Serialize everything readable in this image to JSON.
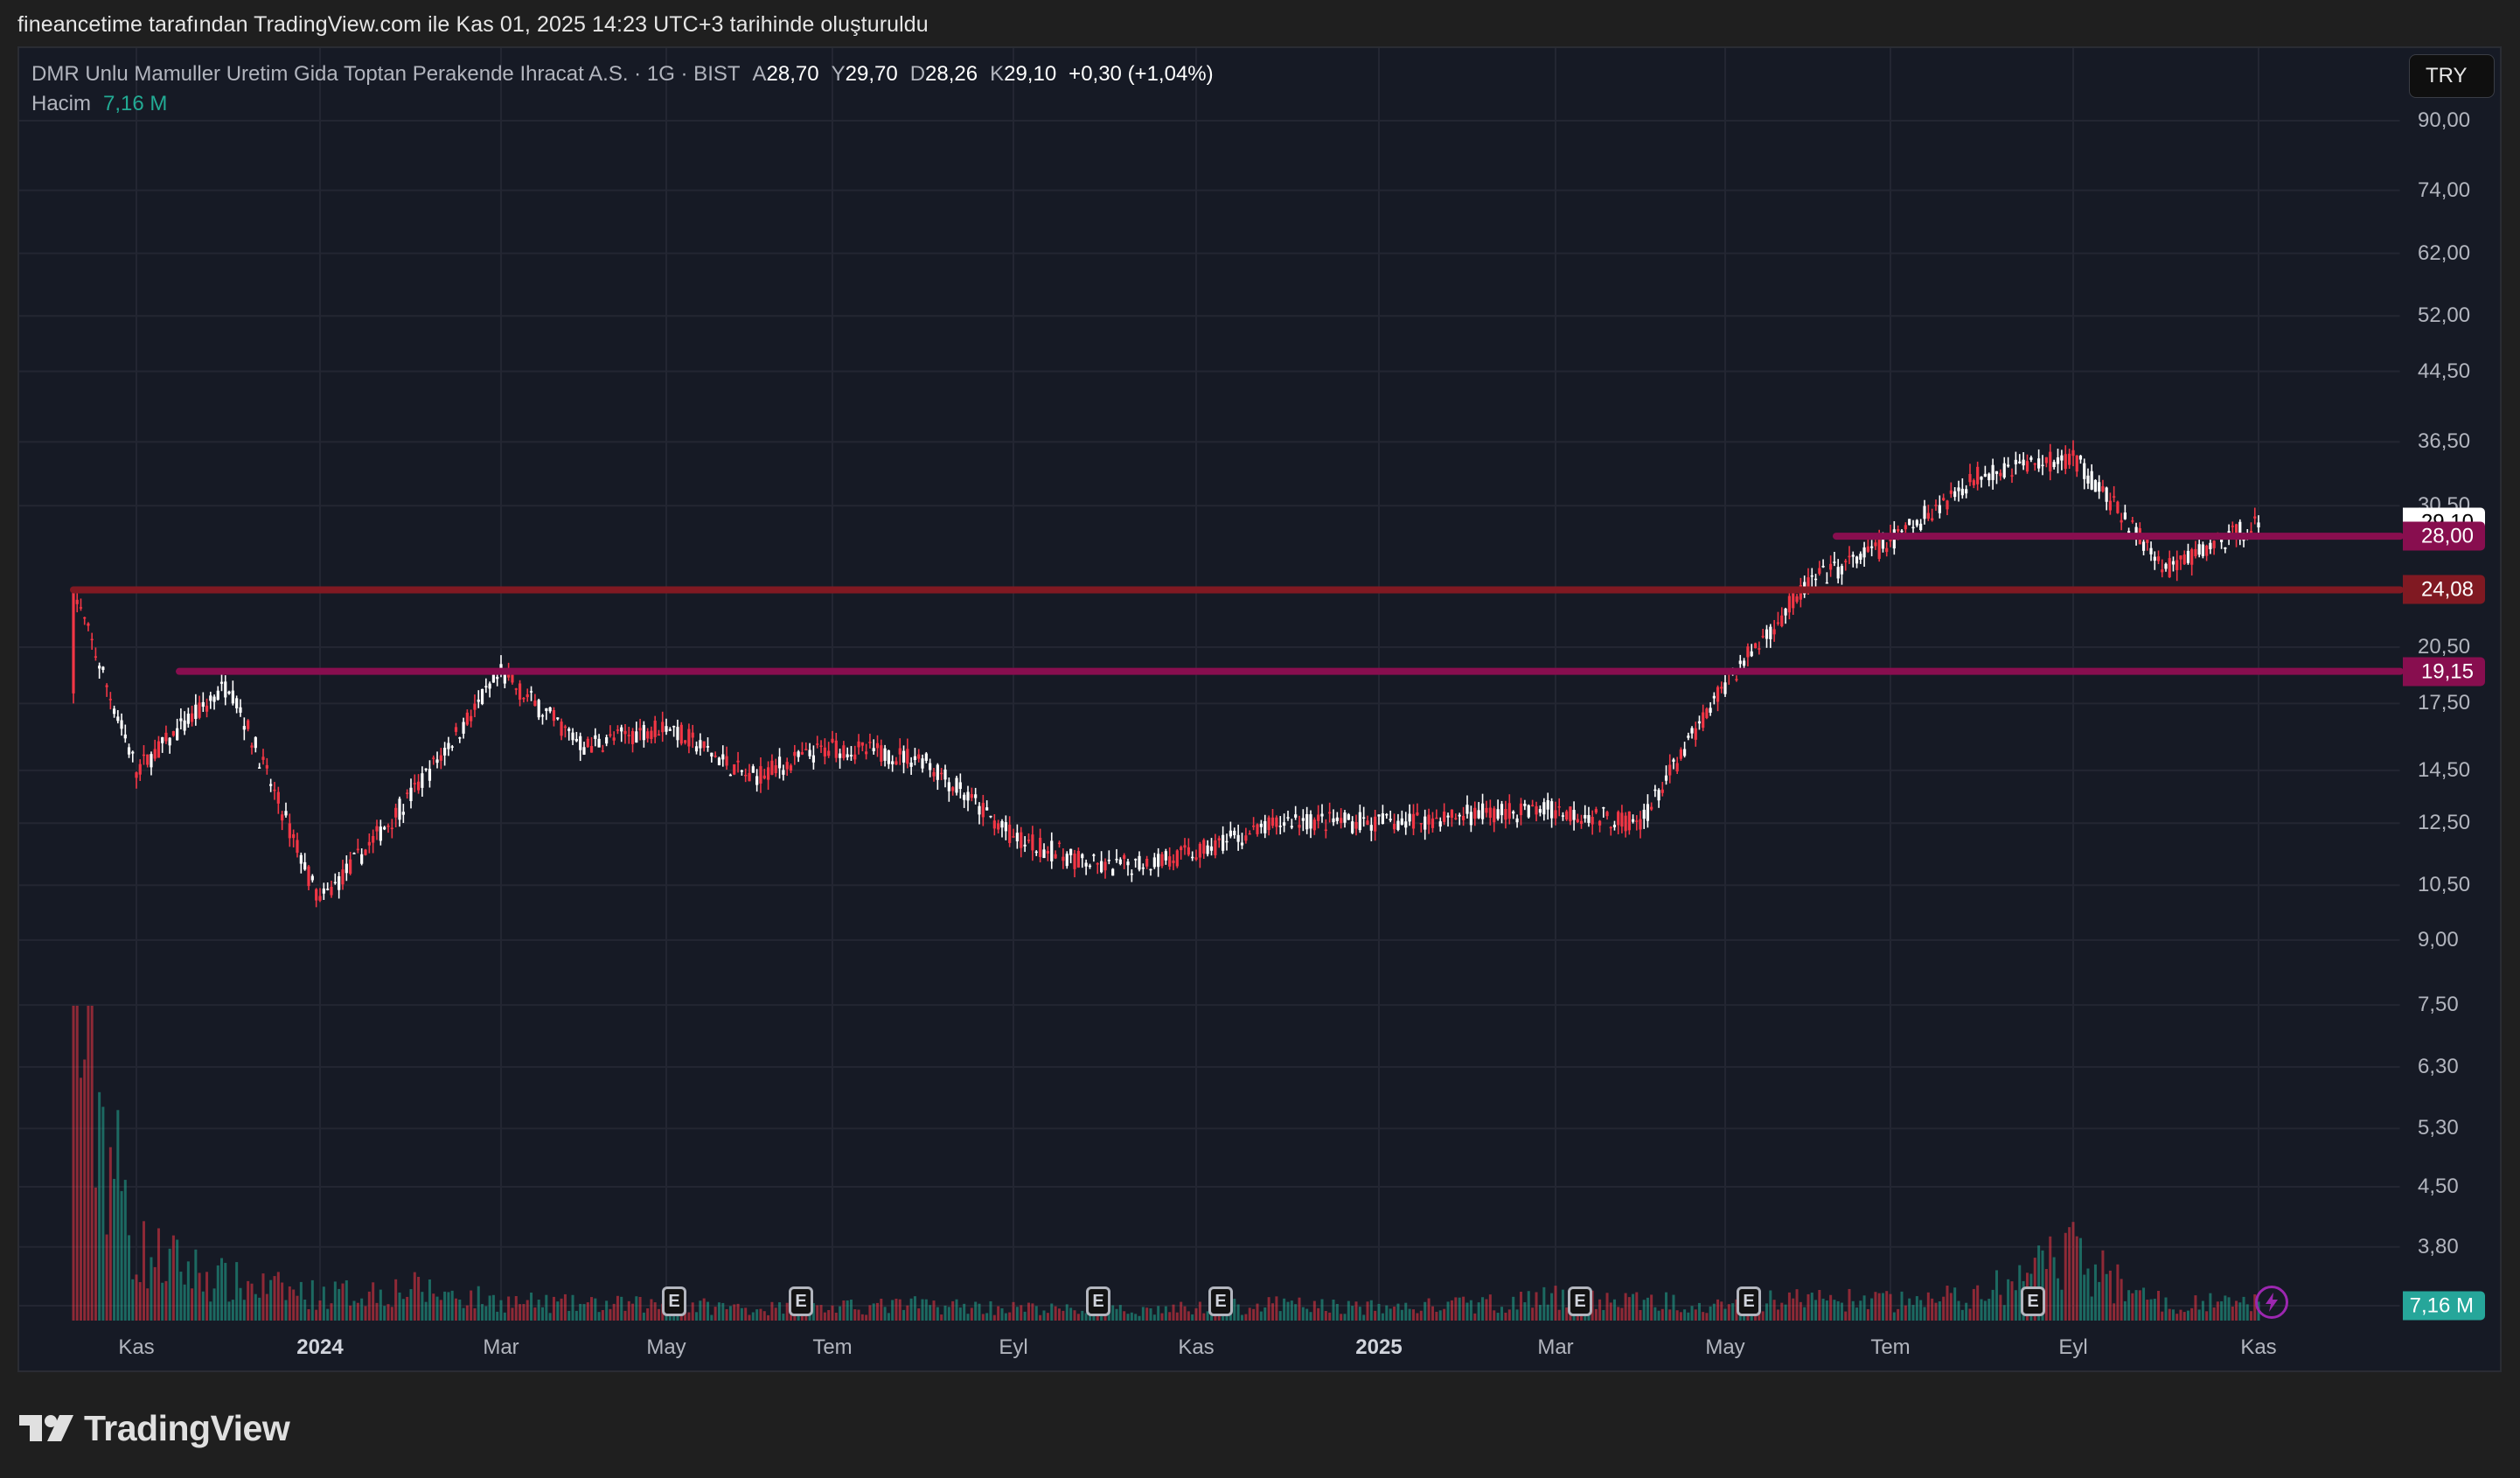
{
  "credit": "fineancetime tarafından TradingView.com ile Kas 01, 2025 14:23 UTC+3 tarihinde oluşturuldu",
  "legend": {
    "symbol": "DMR Unlu Mamuller Uretim Gida Toptan Perakende Ihracat A.S. · 1G · BIST",
    "open_label": "A",
    "open": "28,70",
    "high_label": "Y",
    "high": "29,70",
    "low_label": "D",
    "low": "28,26",
    "close_label": "K",
    "close": "29,10",
    "change": "+0,30 (+1,04%)",
    "volume_label": "Hacim",
    "volume": "7,16 M"
  },
  "currency_button": "TRY",
  "footer_logo": "TradingView",
  "colors": {
    "background": "#161a25",
    "up_candle": "#ffffff",
    "down_candle": "#f23645",
    "up_volume": "#22ab94",
    "down_volume": "#f23645",
    "level_24": "#801922",
    "level_magenta": "#880e4f",
    "last_price_badge": "#ffffff",
    "volume_badge": "#26a69a",
    "flash_icon": "#9c27b0"
  },
  "price_axis": {
    "labels": [
      "90,00",
      "74,00",
      "62,00",
      "52,00",
      "44,50",
      "36,50",
      "30,50",
      "20,50",
      "17,50",
      "14,50",
      "12,50",
      "10,50",
      "9,00",
      "7,50",
      "6,30",
      "5,30",
      "4,50",
      "3,80"
    ],
    "badges": [
      {
        "value": "29,10",
        "type": "last_price"
      },
      {
        "value": "28,00",
        "type": "horizontal_line"
      },
      {
        "value": "24,08",
        "type": "horizontal_line"
      },
      {
        "value": "19,15",
        "type": "horizontal_line"
      },
      {
        "value": "7,16 M",
        "type": "volume"
      }
    ]
  },
  "time_axis": {
    "labels": [
      {
        "text": "Kas",
        "bold": false
      },
      {
        "text": "2024",
        "bold": true
      },
      {
        "text": "Mar",
        "bold": false
      },
      {
        "text": "May",
        "bold": false
      },
      {
        "text": "Tem",
        "bold": false
      },
      {
        "text": "Eyl",
        "bold": false
      },
      {
        "text": "Kas",
        "bold": false
      },
      {
        "text": "2025",
        "bold": true
      },
      {
        "text": "Mar",
        "bold": false
      },
      {
        "text": "May",
        "bold": false
      },
      {
        "text": "Tem",
        "bold": false
      },
      {
        "text": "Eyl",
        "bold": false
      },
      {
        "text": "Kas",
        "bold": false
      }
    ],
    "earnings_marker": "E",
    "earnings_count": 7
  },
  "chart_data": {
    "type": "candlestick",
    "title": "DMR Unlu Mamuller Uretim Gida Toptan Perakende Ihracat A.S. · 1G · BIST",
    "xlabel": "",
    "ylabel": "TRY",
    "y_scale": "log",
    "ylim": [
      3.5,
      95
    ],
    "grid": true,
    "x": [
      "2023-10",
      "2023-11",
      "2023-12",
      "2024-01",
      "2024-02",
      "2024-03",
      "2024-04",
      "2024-05",
      "2024-06",
      "2024-07",
      "2024-08",
      "2024-09",
      "2024-10",
      "2024-11",
      "2024-12",
      "2025-01",
      "2025-02",
      "2025-03",
      "2025-04",
      "2025-05",
      "2025-06",
      "2025-07",
      "2025-08",
      "2025-09",
      "2025-10",
      "2025-10-31"
    ],
    "series": [
      {
        "name": "Close (approx monthly)",
        "values": [
          24.08,
          14.5,
          18.5,
          10.0,
          13.5,
          19.0,
          15.5,
          16.5,
          14.2,
          15.5,
          15.0,
          12.0,
          11.0,
          11.5,
          12.6,
          12.5,
          12.8,
          13.0,
          12.5,
          18.5,
          24.5,
          27.5,
          33.5,
          35.0,
          25.5,
          29.1
        ]
      },
      {
        "name": "Volume (relative)",
        "values": [
          1.0,
          0.22,
          0.12,
          0.08,
          0.1,
          0.06,
          0.05,
          0.05,
          0.04,
          0.04,
          0.05,
          0.04,
          0.03,
          0.04,
          0.05,
          0.04,
          0.05,
          0.07,
          0.06,
          0.06,
          0.07,
          0.06,
          0.08,
          0.2,
          0.05,
          0.06
        ]
      }
    ],
    "horizontal_levels": [
      {
        "value": 24.08,
        "label": "24,08",
        "color": "#801922"
      },
      {
        "value": 19.15,
        "label": "19,15",
        "color": "#880e4f"
      },
      {
        "value": 28.0,
        "label": "28,00",
        "color": "#880e4f"
      }
    ],
    "last": {
      "open": 28.7,
      "high": 29.7,
      "low": 28.26,
      "close": 29.1,
      "change": 0.3,
      "change_pct": 1.04,
      "volume": "7,16 M"
    },
    "all_time_low_approx": 9.3,
    "peak_approx": 36.5
  }
}
